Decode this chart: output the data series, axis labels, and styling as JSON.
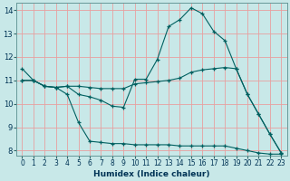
{
  "title": "",
  "xlabel": "Humidex (Indice chaleur)",
  "ylabel": "",
  "bg_color": "#c8e8e8",
  "grid_color": "#e8a0a0",
  "line_color": "#006060",
  "xlim": [
    -0.5,
    23.5
  ],
  "ylim": [
    7.8,
    14.3
  ],
  "yticks": [
    8,
    9,
    10,
    11,
    12,
    13,
    14
  ],
  "xticks": [
    0,
    1,
    2,
    3,
    4,
    5,
    6,
    7,
    8,
    9,
    10,
    11,
    12,
    13,
    14,
    15,
    16,
    17,
    18,
    19,
    20,
    21,
    22,
    23
  ],
  "lines": [
    {
      "x": [
        0,
        1,
        2,
        3,
        4,
        5,
        6,
        7,
        8,
        9,
        10,
        11,
        12,
        13,
        14,
        15,
        16,
        17,
        18,
        19,
        20,
        21,
        22,
        23
      ],
      "y": [
        11.5,
        11.0,
        10.75,
        10.7,
        10.75,
        10.4,
        10.3,
        10.15,
        9.9,
        9.85,
        11.05,
        11.05,
        11.9,
        13.3,
        13.6,
        14.1,
        13.85,
        13.1,
        12.7,
        11.5,
        10.4,
        9.55,
        8.7,
        7.9
      ]
    },
    {
      "x": [
        0,
        1,
        2,
        3,
        4,
        5,
        6,
        7,
        8,
        9,
        10,
        11,
        12,
        13,
        14,
        15,
        16,
        17,
        18,
        19,
        20,
        21,
        22,
        23
      ],
      "y": [
        11.0,
        11.0,
        10.75,
        10.7,
        10.75,
        10.75,
        10.7,
        10.65,
        10.65,
        10.65,
        10.85,
        10.9,
        10.95,
        11.0,
        11.1,
        11.35,
        11.45,
        11.5,
        11.55,
        11.5,
        10.4,
        9.55,
        8.7,
        7.9
      ]
    },
    {
      "x": [
        0,
        1,
        2,
        3,
        4,
        5,
        6,
        7,
        8,
        9,
        10,
        11,
        12,
        13,
        14,
        15,
        16,
        17,
        18,
        19,
        20,
        21,
        22,
        23
      ],
      "y": [
        11.0,
        11.0,
        10.75,
        10.7,
        10.4,
        9.2,
        8.4,
        8.35,
        8.3,
        8.3,
        8.25,
        8.25,
        8.25,
        8.25,
        8.2,
        8.2,
        8.2,
        8.2,
        8.2,
        8.1,
        8.0,
        7.9,
        7.85,
        7.85
      ]
    }
  ]
}
